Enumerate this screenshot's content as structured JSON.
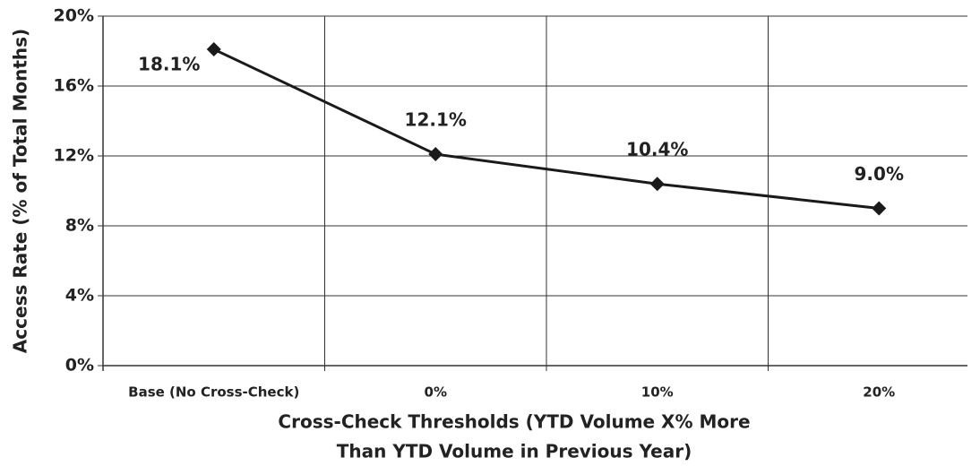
{
  "chart_data": {
    "type": "line",
    "ylabel": "Access Rate (% of Total Months)",
    "xlabel": [
      "Cross-Check Thresholds (YTD Volume X% More",
      "Than YTD Volume in Previous Year)"
    ],
    "categories": [
      "Base (No Cross-Check)",
      "0%",
      "10%",
      "20%"
    ],
    "values": [
      18.1,
      12.1,
      10.4,
      9.0
    ],
    "value_labels": [
      "18.1%",
      "12.1%",
      "10.4%",
      "9.0%"
    ],
    "color": "#1a1a1a",
    "ylim": [
      0,
      20
    ],
    "yticks": [
      {
        "value": 0,
        "label": "0%"
      },
      {
        "value": 4,
        "label": "4%"
      },
      {
        "value": 8,
        "label": "8%"
      },
      {
        "value": 12,
        "label": "12%"
      },
      {
        "value": 16,
        "label": "16%"
      },
      {
        "value": 20,
        "label": "20%"
      }
    ],
    "grid": true
  }
}
